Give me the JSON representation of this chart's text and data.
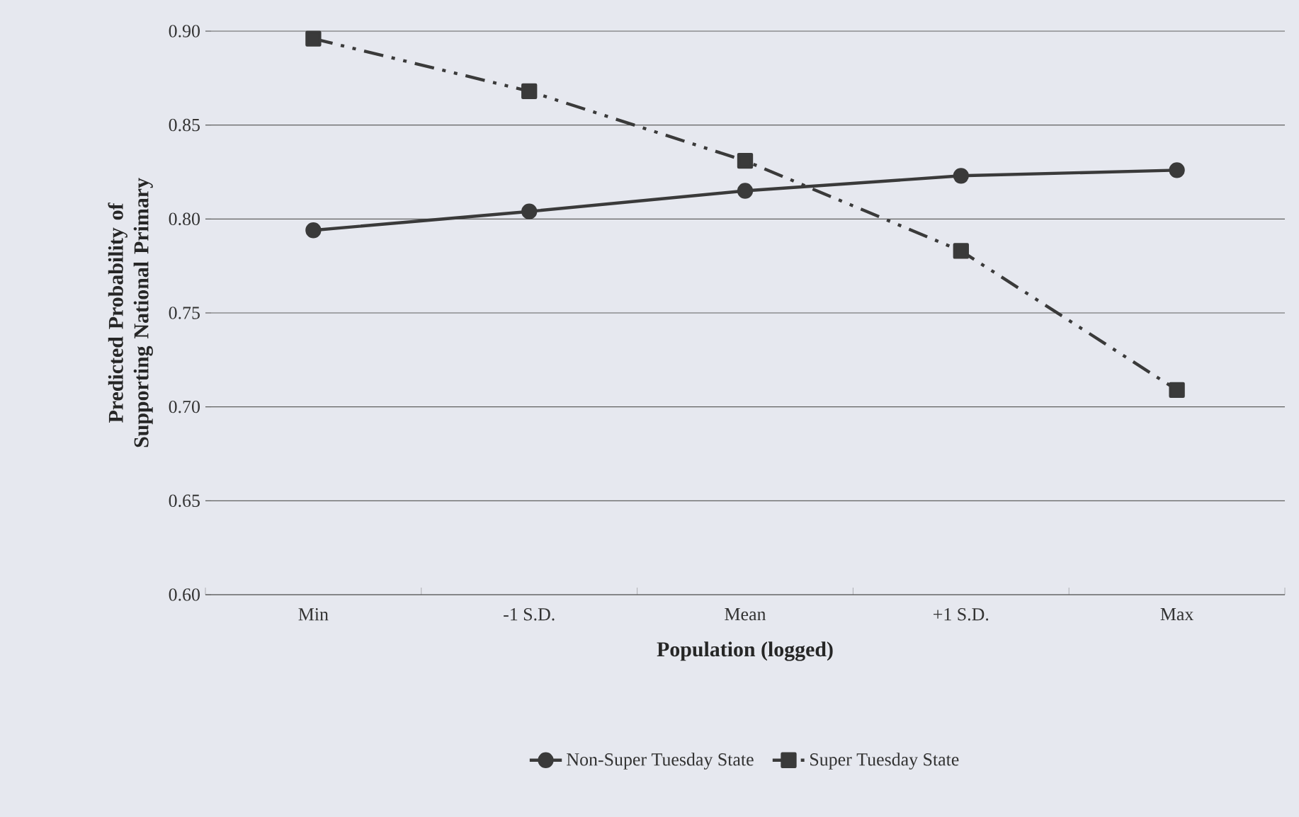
{
  "chart_data": {
    "type": "line",
    "xlabel": "Population (logged)",
    "ylabel": "Predicted Probability of Supporting National Primary",
    "categories": [
      "Min",
      "-1 S.D.",
      "Mean",
      "+1 S.D.",
      "Max"
    ],
    "series": [
      {
        "name": "Non-Super Tuesday State",
        "color": "#3a3a3a",
        "marker": "circle",
        "line_style": "solid",
        "values": [
          0.794,
          0.804,
          0.815,
          0.823,
          0.826
        ]
      },
      {
        "name": "Super Tuesday State",
        "color": "#3a3a3a",
        "marker": "square",
        "line_style": "dashed",
        "values": [
          0.896,
          0.868,
          0.831,
          0.783,
          0.709
        ]
      }
    ],
    "ylim": [
      0.6,
      0.9
    ],
    "yticks": [
      {
        "value": 0.6,
        "label": "0.60"
      },
      {
        "value": 0.65,
        "label": "0.65"
      },
      {
        "value": 0.7,
        "label": "0.70"
      },
      {
        "value": 0.75,
        "label": "0.75"
      },
      {
        "value": 0.8,
        "label": "0.80"
      },
      {
        "value": 0.85,
        "label": "0.85"
      },
      {
        "value": 0.9,
        "label": "0.90"
      }
    ],
    "grid": "y",
    "legend": "bottom"
  }
}
